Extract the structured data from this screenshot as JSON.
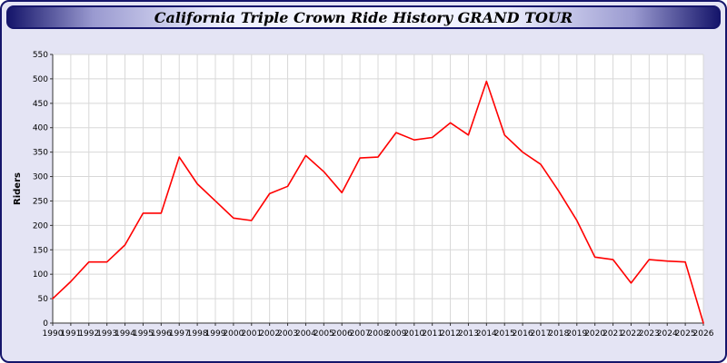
{
  "window": {
    "title": "California Triple Crown Ride History GRAND TOUR"
  },
  "chart_data": {
    "type": "line",
    "title": "California Triple Crown Ride History GRAND TOUR",
    "xlabel": "",
    "ylabel": "Riders",
    "ylim": [
      0,
      550
    ],
    "ytick_step": 50,
    "grid": true,
    "legend_position": "none",
    "line_color": "#ff0000",
    "categories": [
      "1990",
      "1991",
      "1992",
      "1993",
      "1994",
      "1995",
      "1996",
      "1997",
      "1998",
      "1999",
      "2000",
      "2001",
      "2002",
      "2003",
      "2004",
      "2005",
      "2006",
      "2007",
      "2008",
      "2009",
      "2010",
      "2011",
      "2012",
      "2013",
      "2014",
      "2015",
      "2016",
      "2017",
      "2018",
      "2019",
      "2020",
      "2021",
      "2022",
      "2023",
      "2024",
      "2025",
      "2026"
    ],
    "series": [
      {
        "name": "Riders",
        "values": [
          50,
          85,
          125,
          125,
          160,
          225,
          225,
          340,
          285,
          250,
          215,
          210,
          265,
          280,
          343,
          310,
          267,
          338,
          340,
          390,
          375,
          380,
          410,
          385,
          495,
          385,
          350,
          325,
          270,
          210,
          135,
          130,
          82,
          130,
          127,
          125,
          0
        ]
      }
    ],
    "colors": {
      "plot_background": "#ffffff",
      "page_background": "#e4e4f4",
      "grid_color": "#d8d8d8",
      "axis_color": "#333333",
      "border_color": "#16166b"
    }
  }
}
